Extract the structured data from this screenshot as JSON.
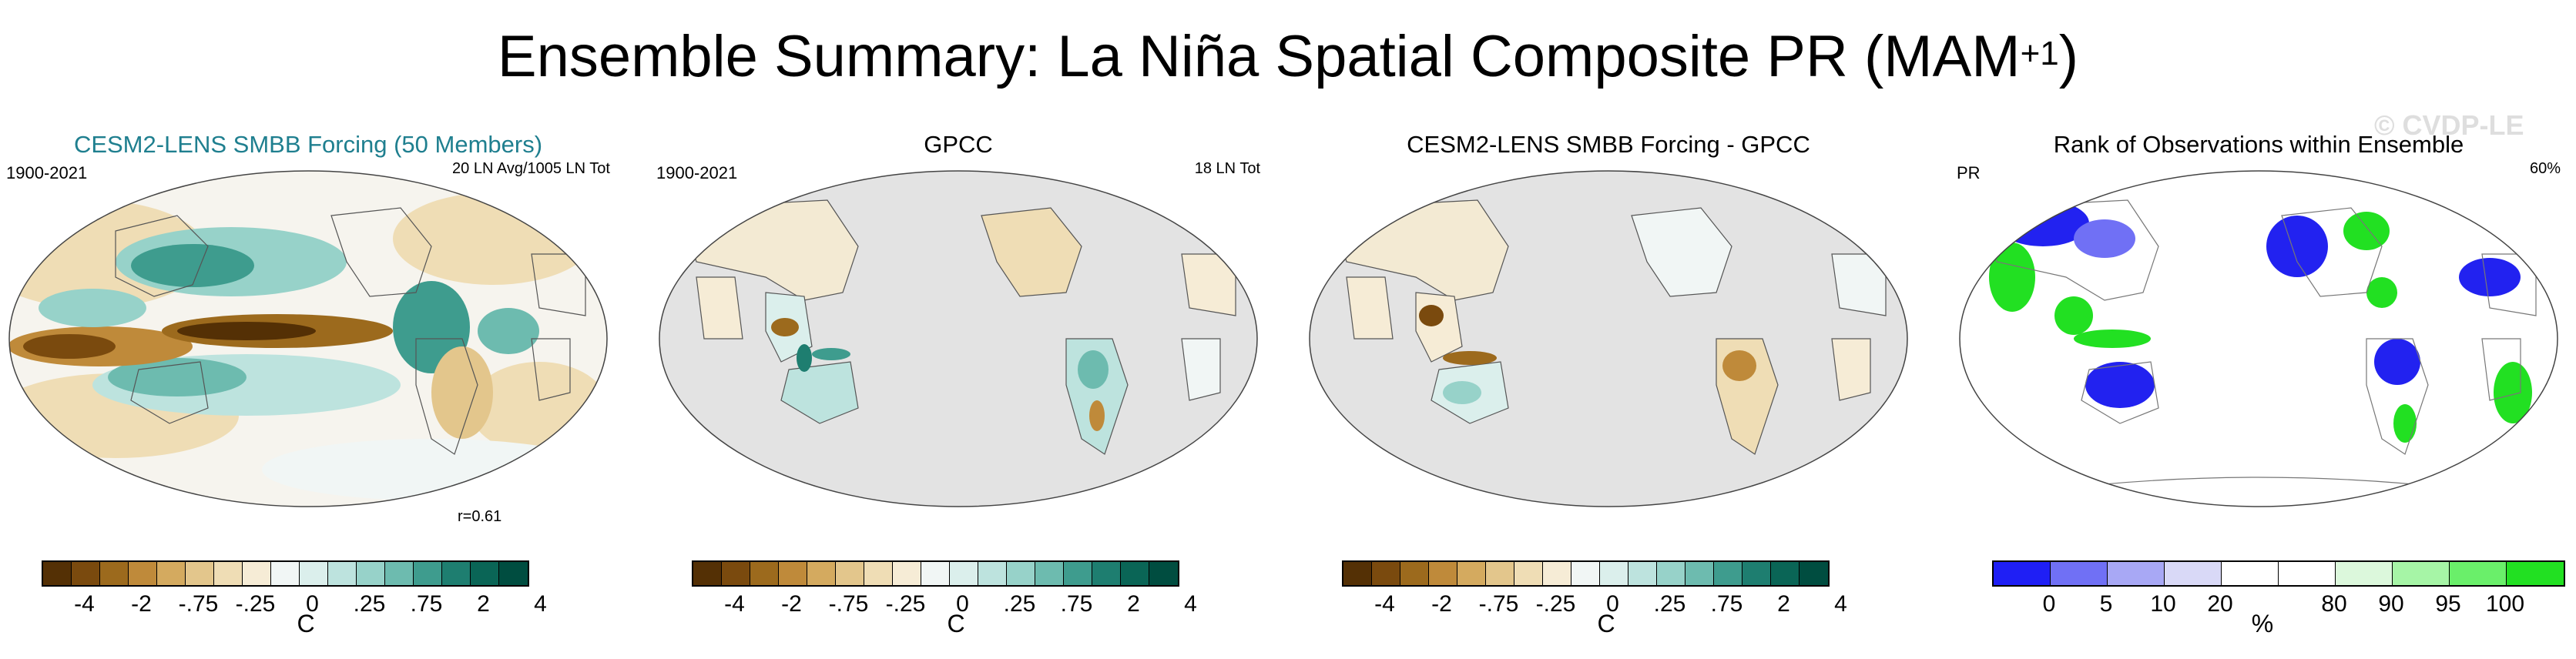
{
  "title": {
    "main": "Ensemble Summary: La Niña Spatial Composite PR (MAM",
    "superscript": "+1",
    "close": ")"
  },
  "watermark": "© CVDP-LE",
  "panels": [
    {
      "title": "CESM2-LENS SMBB Forcing (50 Members)",
      "left_label": "1900-2021",
      "right_label": "20 LN Avg/1005 LN Tot",
      "note": "r=0.61"
    },
    {
      "title": "GPCC",
      "left_label": "1900-2021",
      "right_label": "18 LN Tot",
      "note": ""
    },
    {
      "title": "CESM2-LENS SMBB Forcing - GPCC",
      "left_label": "",
      "right_label": "",
      "note": ""
    },
    {
      "title": "Rank of Observations within Ensemble",
      "left_label": "PR",
      "right_label": "60%",
      "note": ""
    }
  ],
  "colorbar_div": {
    "colors": [
      "#543005",
      "#7a4a0e",
      "#9c6a1d",
      "#bf8a3a",
      "#d4aa5f",
      "#e3c68c",
      "#efddb5",
      "#f6ecd6",
      "#f1f6f5",
      "#dbefec",
      "#bde3de",
      "#97d2c9",
      "#6dbbaf",
      "#3e9c8e",
      "#1e7e70",
      "#0a6556",
      "#004d40"
    ],
    "ticks": [
      "-4",
      "-2",
      "-.75",
      "-.25",
      "0",
      ".25",
      ".75",
      "2",
      "4"
    ],
    "unit": "C"
  },
  "colorbar_rank": {
    "colors": [
      "#1f1ff5",
      "#7070f5",
      "#a8a8f5",
      "#d9d9f7",
      "#ffffff",
      "#ffffff",
      "#dcf8dc",
      "#a6f5a6",
      "#6aef6a",
      "#22e022"
    ],
    "ticks": [
      "0",
      "5",
      "10",
      "20",
      "80",
      "90",
      "95",
      "100"
    ],
    "unit": "%"
  }
}
